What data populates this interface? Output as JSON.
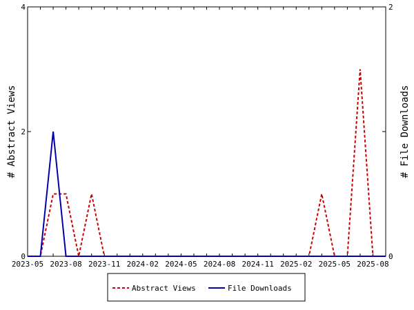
{
  "chart_data": {
    "type": "line",
    "title": "",
    "xlabel": "",
    "ylabel_left": "# Abstract Views",
    "ylabel_right": "# File Downloads",
    "x": [
      "2023-05",
      "2023-06",
      "2023-07",
      "2023-08",
      "2023-09",
      "2023-10",
      "2023-11",
      "2023-12",
      "2024-01",
      "2024-02",
      "2024-03",
      "2024-04",
      "2024-05",
      "2024-06",
      "2024-07",
      "2024-08",
      "2024-09",
      "2024-10",
      "2024-11",
      "2024-12",
      "2025-01",
      "2025-02",
      "2025-03",
      "2025-04",
      "2025-05",
      "2025-06",
      "2025-07",
      "2025-08",
      "2025-09"
    ],
    "x_tick_labels": [
      "2023-05",
      "2023-08",
      "2023-11",
      "2024-02",
      "2024-05",
      "2024-08",
      "2024-11",
      "2025-02",
      "2025-05",
      "2025-08"
    ],
    "ylim_left": [
      0,
      4
    ],
    "ylim_right": [
      0,
      2
    ],
    "y_ticks_left": [
      0,
      2,
      4
    ],
    "y_ticks_right": [
      0,
      1,
      2
    ],
    "y_tick_labels_right": [
      "0",
      "",
      "2"
    ],
    "series": [
      {
        "name": "Abstract Views",
        "axis": "left",
        "color": "#cc0000",
        "dash": true,
        "values": [
          0,
          0,
          1,
          1,
          0,
          1,
          0,
          0,
          0,
          0,
          0,
          0,
          0,
          0,
          0,
          0,
          0,
          0,
          0,
          0,
          0,
          0,
          0,
          1,
          0,
          0,
          3,
          0,
          0
        ]
      },
      {
        "name": "File Downloads",
        "axis": "right",
        "color": "#0000aa",
        "dash": false,
        "values": [
          0,
          0,
          1,
          0,
          0,
          0,
          0,
          0,
          0,
          0,
          0,
          0,
          0,
          0,
          0,
          0,
          0,
          0,
          0,
          0,
          0,
          0,
          0,
          0,
          0,
          0,
          0,
          0,
          0
        ]
      }
    ],
    "grid": false,
    "legend_position": "bottom"
  }
}
